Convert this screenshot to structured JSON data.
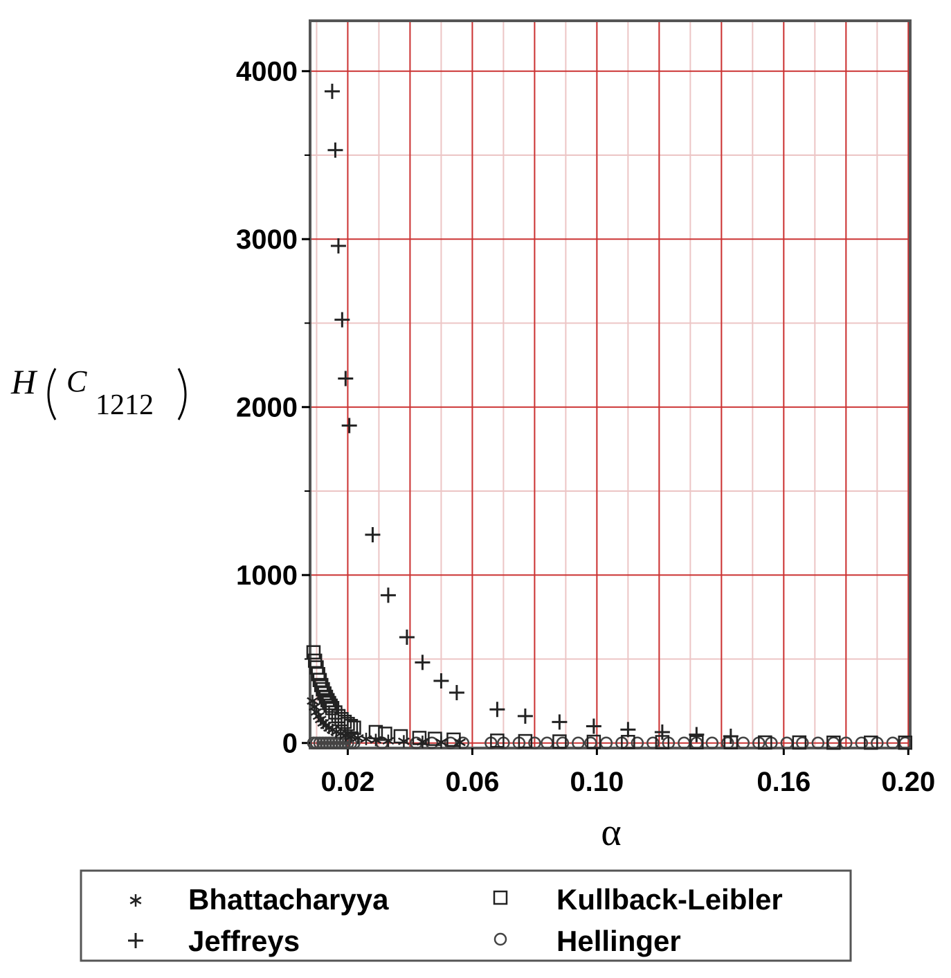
{
  "chart_data": {
    "type": "scatter",
    "xlabel": "α",
    "ylabel": {
      "main": "H",
      "sub_var": "C",
      "subscript": "1212"
    },
    "xlim": [
      0.0079,
      0.2006
    ],
    "ylim": [
      -30,
      4300
    ],
    "x_ticks": [
      {
        "value": 0.02,
        "label": "0.02"
      },
      {
        "value": 0.06,
        "label": "0.06"
      },
      {
        "value": 0.1,
        "label": "0.10"
      },
      {
        "value": 0.16,
        "label": "0.16"
      },
      {
        "value": 0.2,
        "label": "0.20"
      }
    ],
    "y_ticks": [
      {
        "value": 0,
        "label": "0"
      },
      {
        "value": 1000,
        "label": "1000"
      },
      {
        "value": 2000,
        "label": "2000"
      },
      {
        "value": 3000,
        "label": "3000"
      },
      {
        "value": 4000,
        "label": "4000"
      }
    ],
    "grid": true,
    "grid_color_major": "#cc3333",
    "grid_color_minor": "#ecc5c5",
    "legend_position": "bottom",
    "series": [
      {
        "name": "Bhattacharyya",
        "marker": "star",
        "x": [
          0.0087,
          0.0093,
          0.0099,
          0.0106,
          0.0113,
          0.0121,
          0.013,
          0.014,
          0.0151,
          0.0163,
          0.0177,
          0.0193,
          0.0211,
          0.0233,
          0.0259,
          0.029,
          0.033,
          0.038,
          0.044,
          0.05,
          0.056
        ],
        "values": [
          250,
          215,
          185,
          160,
          140,
          120,
          105,
          90,
          78,
          66,
          56,
          46,
          38,
          30,
          24,
          18,
          13,
          10,
          7,
          5,
          4
        ]
      },
      {
        "name": "Jeffreys",
        "marker": "plus",
        "x": [
          0.015,
          0.016,
          0.017,
          0.0182,
          0.0193,
          0.0205,
          0.028,
          0.033,
          0.039,
          0.044,
          0.05,
          0.055,
          0.068,
          0.077,
          0.088,
          0.099,
          0.11,
          0.121,
          0.132,
          0.143
        ],
        "values": [
          3880,
          3530,
          2960,
          2520,
          2170,
          1890,
          1240,
          880,
          630,
          480,
          370,
          300,
          200,
          160,
          125,
          100,
          80,
          65,
          50,
          40
        ]
      },
      {
        "name": "Kullback-Leibler",
        "marker": "square",
        "x": [
          0.009,
          0.0095,
          0.01,
          0.0105,
          0.011,
          0.0115,
          0.012,
          0.0125,
          0.013,
          0.0135,
          0.014,
          0.0145,
          0.015,
          0.016,
          0.017,
          0.018,
          0.019,
          0.02,
          0.021,
          0.022,
          0.029,
          0.032,
          0.037,
          0.043,
          0.048,
          0.054,
          0.068,
          0.077,
          0.088,
          0.099,
          0.11,
          0.121,
          0.132,
          0.143,
          0.154,
          0.165,
          0.176,
          0.188,
          0.199
        ],
        "values": [
          540,
          490,
          450,
          410,
          375,
          345,
          320,
          295,
          275,
          255,
          238,
          222,
          208,
          182,
          160,
          142,
          126,
          113,
          101,
          91,
          65,
          55,
          40,
          30,
          25,
          20,
          14,
          11,
          9,
          7,
          6,
          5,
          4,
          4,
          3,
          3,
          2,
          2,
          2
        ]
      },
      {
        "name": "Hellinger",
        "marker": "circle",
        "x": [
          0.009,
          0.01,
          0.011,
          0.012,
          0.013,
          0.014,
          0.015,
          0.016,
          0.017,
          0.018,
          0.019,
          0.02,
          0.021,
          0.022,
          0.031,
          0.042,
          0.047,
          0.053,
          0.057,
          0.066,
          0.07,
          0.075,
          0.08,
          0.084,
          0.089,
          0.094,
          0.098,
          0.103,
          0.108,
          0.113,
          0.118,
          0.123,
          0.128,
          0.132,
          0.137,
          0.142,
          0.147,
          0.152,
          0.156,
          0.161,
          0.166,
          0.171,
          0.176,
          0.18,
          0.185,
          0.19,
          0.195,
          0.199
        ],
        "values": [
          0,
          0,
          0,
          0,
          0,
          0,
          0,
          0,
          0,
          0,
          0,
          0,
          0,
          0,
          0,
          0,
          0,
          0,
          0,
          0,
          0,
          0,
          0,
          0,
          0,
          0,
          0,
          0,
          0,
          0,
          0,
          0,
          0,
          0,
          0,
          0,
          0,
          0,
          0,
          0,
          0,
          0,
          0,
          0,
          0,
          0,
          0,
          0
        ]
      }
    ]
  }
}
